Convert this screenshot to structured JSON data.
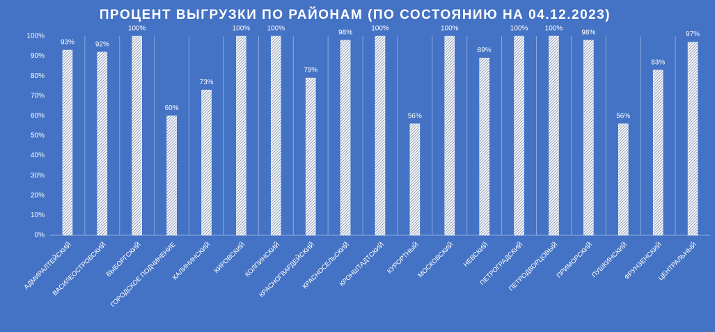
{
  "chart_data": {
    "type": "bar",
    "title": "ПРОЦЕНТ ВЫГРУЗКИ ПО РАЙОНАМ (ПО СОСТОЯНИЮ НА 04.12.2023)",
    "categories": [
      "АДМИРАЛТЕЙСКИЙ",
      "ВАСИЛЕОСТРОВСКИЙ",
      "ВЫБОРГСКИЙ",
      "ГОРОДСКОЕ ПОДЧИНЕНИЕ",
      "КАЛИНИНСКИЙ",
      "КИРОВСКИЙ",
      "КОЛПИНСКИЙ",
      "КРАСНОГВАРДЕЙСКИЙ",
      "КРАСНОСЕЛЬСКИЙ",
      "КРОНШТАДТСКИЙ",
      "КУРОРТНЫЙ",
      "МОСКОВСКИЙ",
      "НЕВСКИЙ",
      "ПЕТРОГРАДСКИЙ",
      "ПЕТРОДВОРЦОВЫЙ",
      "ПРИМОРСКИЙ",
      "ПУШКИНСКИЙ",
      "ФРУНЗЕНСКИЙ",
      "ЦЕНТРАЛЬНЫЙ"
    ],
    "values": [
      93,
      92,
      100,
      60,
      73,
      100,
      100,
      79,
      98,
      100,
      56,
      100,
      89,
      100,
      100,
      98,
      56,
      83,
      97
    ],
    "value_labels": [
      "93%",
      "92%",
      "100%",
      "60%",
      "73%",
      "100%",
      "100%",
      "79%",
      "98%",
      "100%",
      "56%",
      "100%",
      "89%",
      "100%",
      "100%",
      "98%",
      "56%",
      "83%",
      "97%"
    ],
    "color": "#ffffff",
    "ylim": [
      0,
      100
    ],
    "yticks": [
      {
        "value": 0,
        "label": "0%"
      },
      {
        "value": 10,
        "label": "10%"
      },
      {
        "value": 20,
        "label": "20%"
      },
      {
        "value": 30,
        "label": "30%"
      },
      {
        "value": 40,
        "label": "40%"
      },
      {
        "value": 50,
        "label": "50%"
      },
      {
        "value": 60,
        "label": "60%"
      },
      {
        "value": 70,
        "label": "70%"
      },
      {
        "value": 80,
        "label": "80%"
      },
      {
        "value": 90,
        "label": "90%"
      },
      {
        "value": 100,
        "label": "100%"
      }
    ]
  }
}
